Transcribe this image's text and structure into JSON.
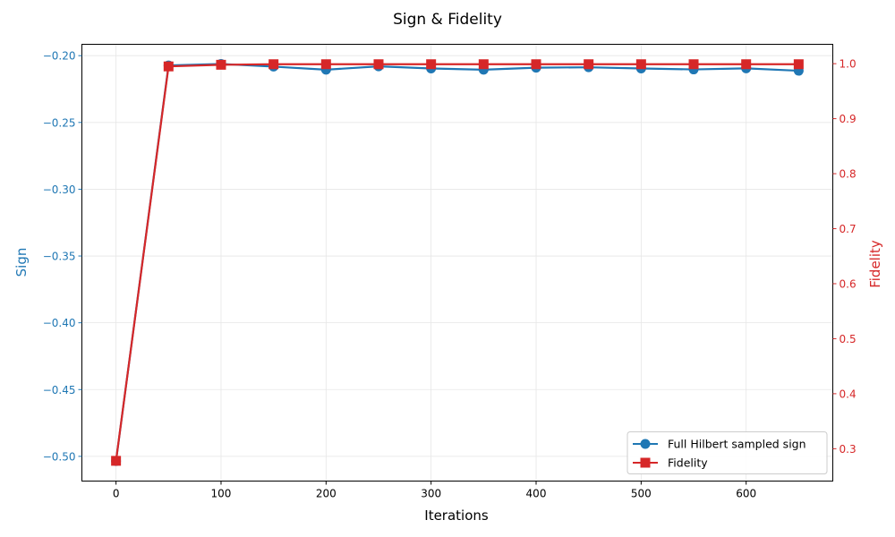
{
  "chart_data": {
    "type": "line",
    "title": "Sign & Fidelity",
    "xlabel": "Iterations",
    "ylabel_left": "Sign",
    "ylabel_right": "Fidelity",
    "xlim": [
      -32.5,
      682.5
    ],
    "ylim_left": [
      -0.5185,
      -0.1915
    ],
    "ylim_right": [
      0.2412,
      1.0352
    ],
    "x_ticks": [
      0,
      100,
      200,
      300,
      400,
      500,
      600
    ],
    "y_left_ticks": [
      -0.2,
      -0.25,
      -0.3,
      -0.35,
      -0.4,
      -0.45,
      -0.5
    ],
    "y_left_tick_labels": [
      "−0.20",
      "−0.25",
      "−0.30",
      "−0.35",
      "−0.40",
      "−0.45",
      "−0.50"
    ],
    "y_right_ticks": [
      0.3,
      0.4,
      0.5,
      0.6,
      0.7,
      0.8,
      0.9,
      1.0
    ],
    "y_right_tick_labels": [
      "0.3",
      "0.4",
      "0.5",
      "0.6",
      "0.7",
      "0.8",
      "0.9",
      "1.0"
    ],
    "grid": true,
    "legend_position": "lower-right",
    "x": [
      0,
      50,
      100,
      150,
      200,
      250,
      300,
      350,
      400,
      450,
      500,
      550,
      600,
      650
    ],
    "series": [
      {
        "name": "Full Hilbert sampled sign",
        "axis": "left",
        "color": "#1f77b4",
        "marker": "circle",
        "values": [
          -0.5035,
          -0.2073,
          -0.2062,
          -0.2082,
          -0.2105,
          -0.208,
          -0.2096,
          -0.2105,
          -0.209,
          -0.2087,
          -0.2096,
          -0.2103,
          -0.2095,
          -0.2113
        ]
      },
      {
        "name": "Fidelity",
        "axis": "right",
        "color": "#d62728",
        "marker": "square",
        "values": [
          0.278,
          0.995,
          0.998,
          0.999,
          0.999,
          0.999,
          0.999,
          0.999,
          0.999,
          0.999,
          0.999,
          0.999,
          0.999,
          0.999
        ]
      }
    ]
  }
}
